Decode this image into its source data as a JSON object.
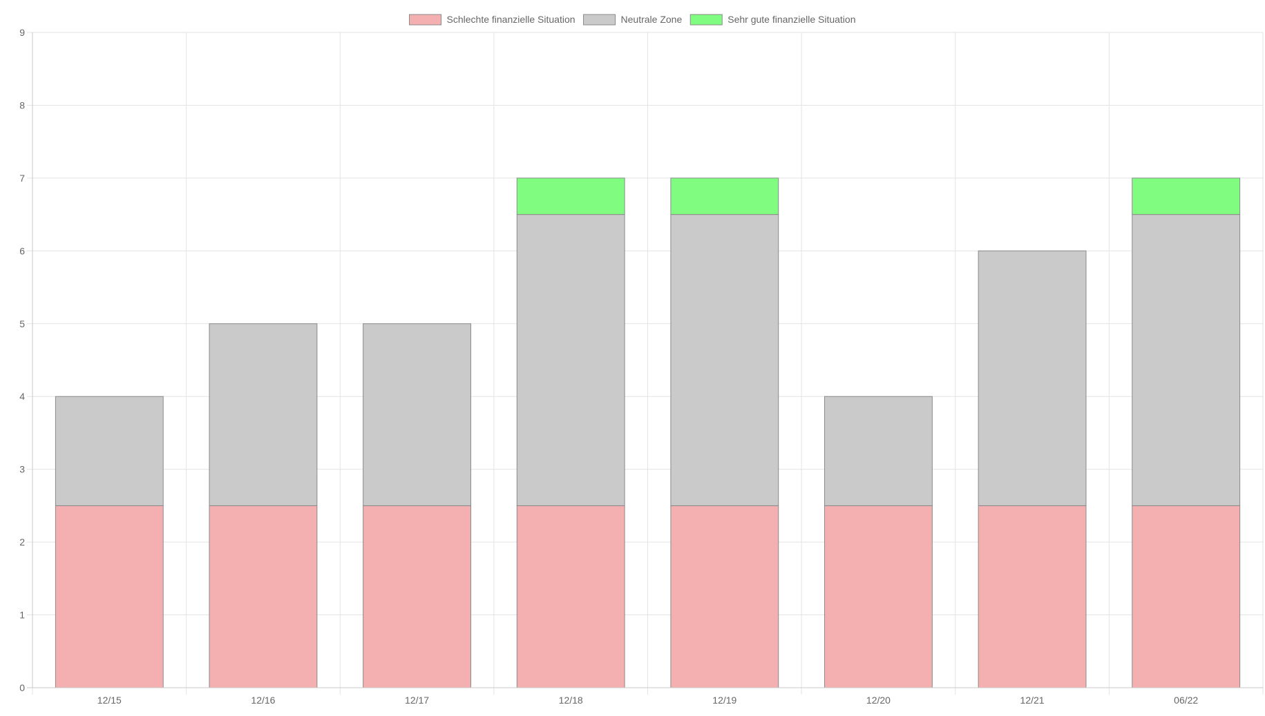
{
  "chart_data": {
    "type": "bar",
    "stacked": true,
    "categories": [
      "12/15",
      "12/16",
      "12/17",
      "12/18",
      "12/19",
      "12/20",
      "12/21",
      "06/22"
    ],
    "series": [
      {
        "name": "Schlechte finanzielle Situation",
        "color": "#f4b0b0",
        "values": [
          2.5,
          2.5,
          2.5,
          2.5,
          2.5,
          2.5,
          2.5,
          2.5
        ]
      },
      {
        "name": "Neutrale Zone",
        "color": "#cacaca",
        "values": [
          1.5,
          2.5,
          2.5,
          4.0,
          4.0,
          1.5,
          3.5,
          4.0
        ]
      },
      {
        "name": "Sehr gute finanzielle Situation",
        "color": "#80fc80",
        "values": [
          0,
          0,
          0,
          0.5,
          0.5,
          0,
          0,
          0.5
        ]
      }
    ],
    "ylim": [
      0,
      9
    ],
    "yticks": [
      "0",
      "1",
      "2",
      "3",
      "4",
      "5",
      "6",
      "7",
      "8",
      "9"
    ],
    "grid": true,
    "legend_position": "top-center",
    "title": "",
    "xlabel": "",
    "ylabel": ""
  }
}
